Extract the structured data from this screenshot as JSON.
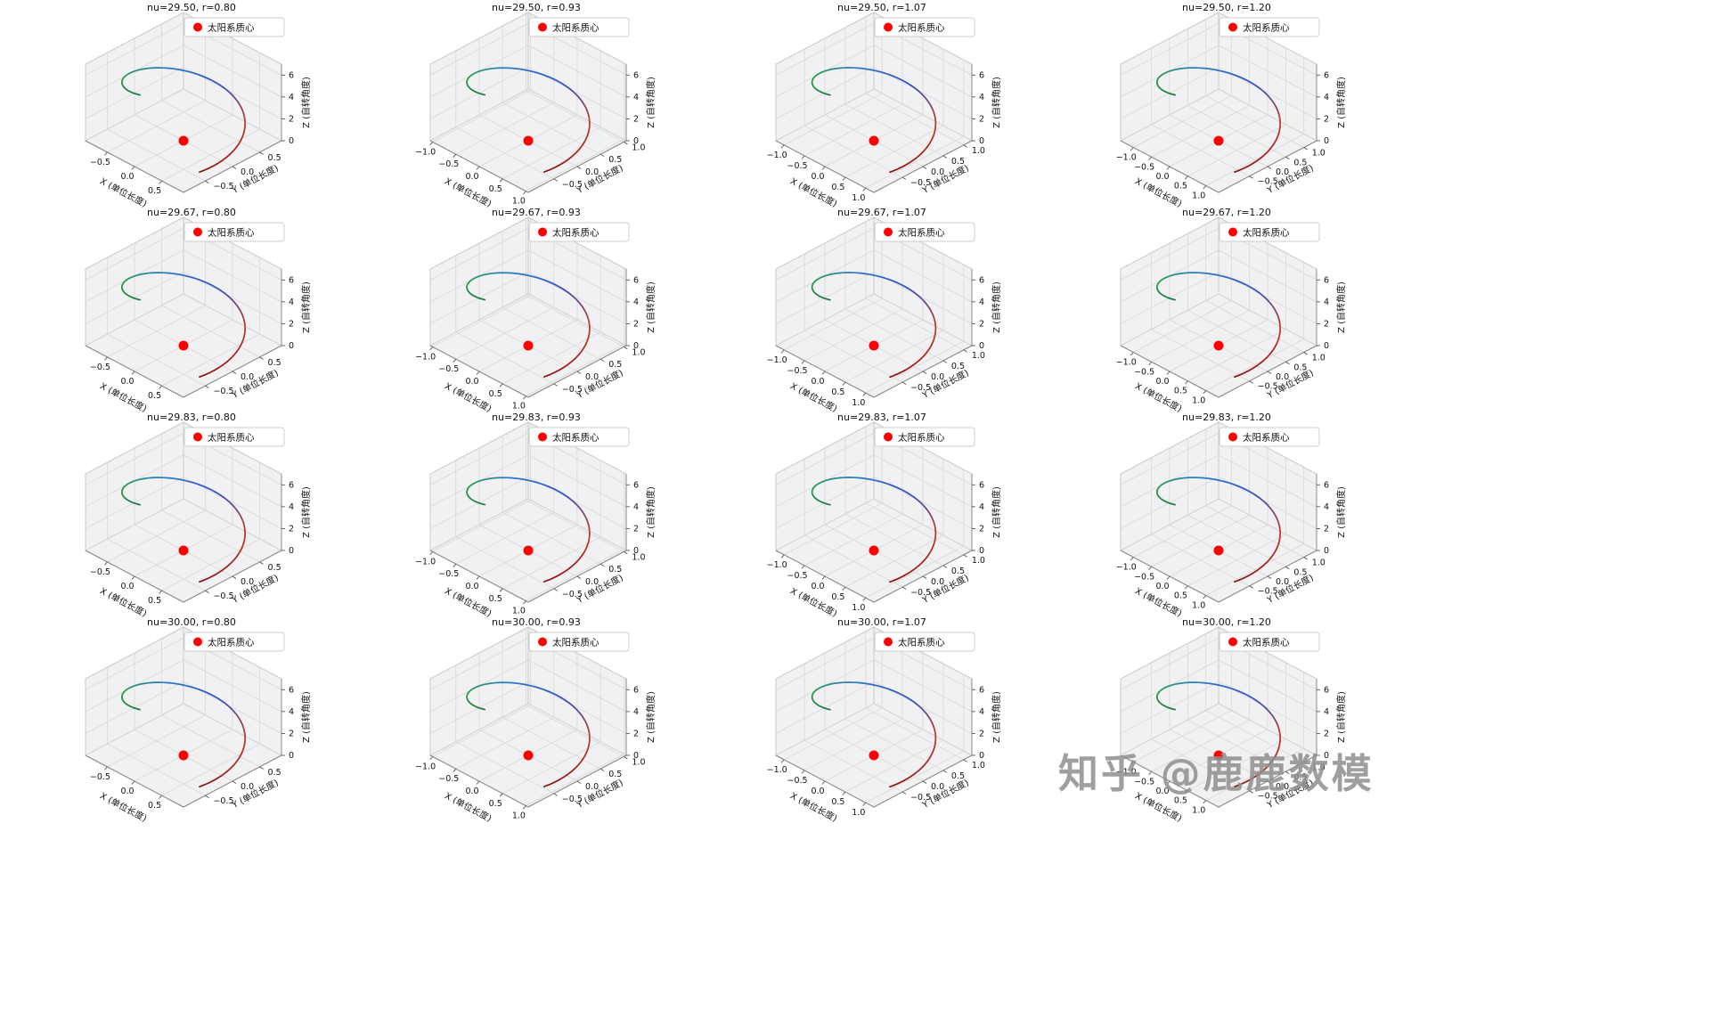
{
  "watermark": {
    "text": "知乎 @鹿鹿数模",
    "color": "#8f8f8f"
  },
  "figure": {
    "title_template": "nu={nu},  r={r}",
    "rows": [
      {
        "nu": "29.50"
      },
      {
        "nu": "29.67"
      },
      {
        "nu": "29.83"
      },
      {
        "nu": "30.00"
      }
    ],
    "cols": [
      {
        "r": "0.80",
        "lim": 0.9,
        "x_ticks": [
          -0.5,
          0,
          0.5
        ],
        "y_ticks": [
          -0.5,
          0,
          0.5
        ]
      },
      {
        "r": "0.93",
        "lim": 1.05,
        "x_ticks": [
          -1,
          -0.5,
          0,
          0.5,
          1
        ],
        "y_ticks": [
          -0.5,
          0,
          0.5,
          1
        ]
      },
      {
        "r": "1.07",
        "lim": 1.2,
        "x_ticks": [
          -1,
          -0.5,
          0,
          0.5,
          1
        ],
        "y_ticks": [
          -0.5,
          0,
          0.5,
          1
        ]
      },
      {
        "r": "1.20",
        "lim": 1.35,
        "x_ticks": [
          -1,
          -0.5,
          0,
          0.5,
          1
        ],
        "y_ticks": [
          -0.5,
          0,
          0.5,
          1
        ]
      }
    ],
    "axes": {
      "xlabel": "X (单位长度)",
      "ylabel": "Y (单位长度)",
      "zlabel": "Z (自转角度)",
      "z_ticks": [
        0,
        2,
        4,
        6
      ]
    },
    "legend": {
      "label": "太阳系质心",
      "marker_color": "#ff0000"
    },
    "styles": {
      "pane_fill": "#f1f1f3",
      "grid_line": "#d8d8d8",
      "pane_edge": "#c9c9c9",
      "axis_line": "#888888",
      "tick_color": "#444444",
      "text_color": "#111111"
    }
  },
  "chart_data": {
    "type": "line",
    "layout": "4x4 grid of matplotlib-style 3D subplots, one helix trajectory per subplot",
    "title_template": "nu={nu},  r={r}",
    "nu_values": [
      29.5,
      29.67,
      29.83,
      30.0
    ],
    "r_values": [
      0.8,
      0.93,
      1.07,
      1.2
    ],
    "z_ticks": [
      0,
      2,
      4,
      6
    ],
    "z_lim": [
      0,
      7
    ],
    "x_ticks_by_column": [
      [
        -0.5,
        0,
        0.5
      ],
      [
        -1,
        -0.5,
        0,
        0.5,
        1
      ],
      [
        -1,
        -0.5,
        0,
        0.5,
        1
      ],
      [
        -1,
        -0.5,
        0,
        0.5,
        1
      ]
    ],
    "y_ticks_by_column": [
      [
        -0.5,
        0,
        0.5
      ],
      [
        -0.5,
        0,
        0.5,
        1
      ],
      [
        -0.5,
        0,
        0.5,
        1
      ],
      [
        -0.5,
        0,
        0.5,
        1
      ]
    ],
    "axis_labels": {
      "x": "X (单位长度)",
      "y": "Y (单位长度)",
      "z": "Z (自转角度)"
    },
    "trajectory": {
      "kind": "helix",
      "equations": {
        "x": "r*cos(theta)",
        "y": "r*sin(theta)",
        "z": "rises linearly 0 → 2*pi"
      },
      "theta_start_deg": -30,
      "theta_span_deg": 300,
      "z_range": [
        0,
        6.28
      ],
      "n_points": 120,
      "color_stops": [
        [
          0.0,
          "#8b1212"
        ],
        [
          0.26,
          "#c23a20"
        ],
        [
          0.44,
          "#3050c8"
        ],
        [
          0.6,
          "#2b78c8"
        ],
        [
          0.8,
          "#2aa04e"
        ],
        [
          1.0,
          "#1e7a44"
        ]
      ]
    },
    "marker": {
      "label": "太阳系质心",
      "position": [
        0,
        0,
        0
      ],
      "color": "#ff0000"
    }
  }
}
